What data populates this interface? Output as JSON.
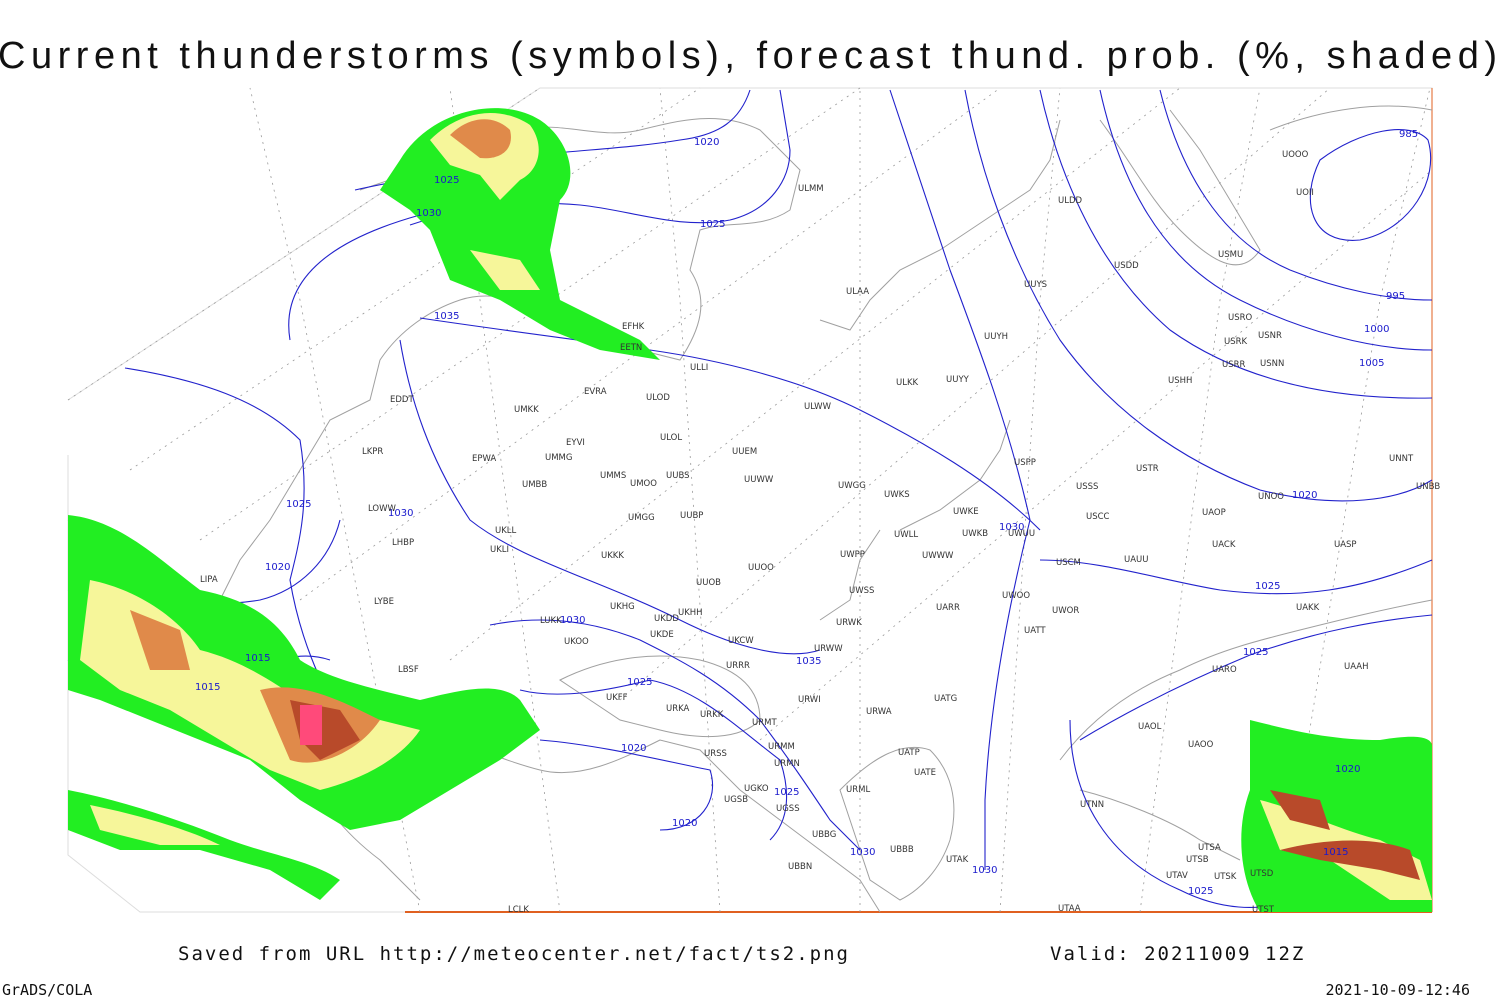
{
  "header": {
    "title": "Current thunderstorms (symbols), forecast thund. prob. (%, shaded)"
  },
  "isobar_labels": [
    "985",
    "1020",
    "1025",
    "1025",
    "1030",
    "995",
    "1000",
    "1005",
    "1035",
    "1020",
    "1025",
    "1030",
    "1030",
    "1020",
    "1025",
    "1030",
    "1015",
    "1025",
    "1035",
    "1015",
    "1025",
    "1020",
    "1020",
    "1025",
    "1020",
    "1030",
    "1015",
    "1030",
    "1025"
  ],
  "station_labels": [
    "ULMM",
    "ULDD",
    "USDD",
    "USMU",
    "UOOO",
    "UOII",
    "ULAA",
    "UUYS",
    "USRO",
    "USNR",
    "USRK",
    "USRR",
    "USNN",
    "UUYH",
    "EFHK",
    "EETN",
    "ULLI",
    "ULKK",
    "UUYY",
    "USHH",
    "EVRA",
    "ULOD",
    "EDDT",
    "ULWW",
    "UMKK",
    "EYVI",
    "ULOL",
    "UUEM",
    "LKPR",
    "EPWA",
    "UMMG",
    "USPP",
    "USTR",
    "UNNT",
    "UMMS",
    "UMOO",
    "UUBS",
    "UUWW",
    "UWGG",
    "USSS",
    "UNOO",
    "UNBB",
    "UMBB",
    "UWKS",
    "LOWW",
    "UUBP",
    "UMGG",
    "UWKE",
    "UKLL",
    "USCC",
    "UAOP",
    "LHBP",
    "UWLL",
    "UWKB",
    "UWUU",
    "UKLI",
    "UKKK",
    "UWWW",
    "UACK",
    "UASP",
    "UWPP",
    "USCM",
    "UAUU",
    "UUOO",
    "LIPA",
    "UUOB",
    "UWSS",
    "UWOO",
    "UWOR",
    "LYBE",
    "UKHG",
    "UKDD",
    "UKHH",
    "UARR",
    "UAKK",
    "URWK",
    "LUKK",
    "UKOO",
    "UKDE",
    "UKCW",
    "URWW",
    "UATT",
    "LBSF",
    "URRR",
    "UARO",
    "UAAH",
    "UKFF",
    "URKA",
    "URKK",
    "URWI",
    "UATG",
    "URWA",
    "UAOL",
    "UAOO",
    "URMT",
    "URMM",
    "URSS",
    "UATP",
    "URMN",
    "UATE",
    "UGKO",
    "URML",
    "UGSS",
    "UTNN",
    "UGSB",
    "UBBG",
    "UBBB",
    "UTAK",
    "UTSA",
    "UTSB",
    "UBBN",
    "UTAV",
    "UTSK",
    "UTSD",
    "UTST",
    "UTAA",
    "LCLK"
  ],
  "footer": {
    "source": "Saved from URL http://meteocenter.net/fact/ts2.png",
    "valid": "Valid: 20211009 12Z",
    "software": "GrADS/COLA",
    "timestamp": "2021-10-09-12:46"
  }
}
